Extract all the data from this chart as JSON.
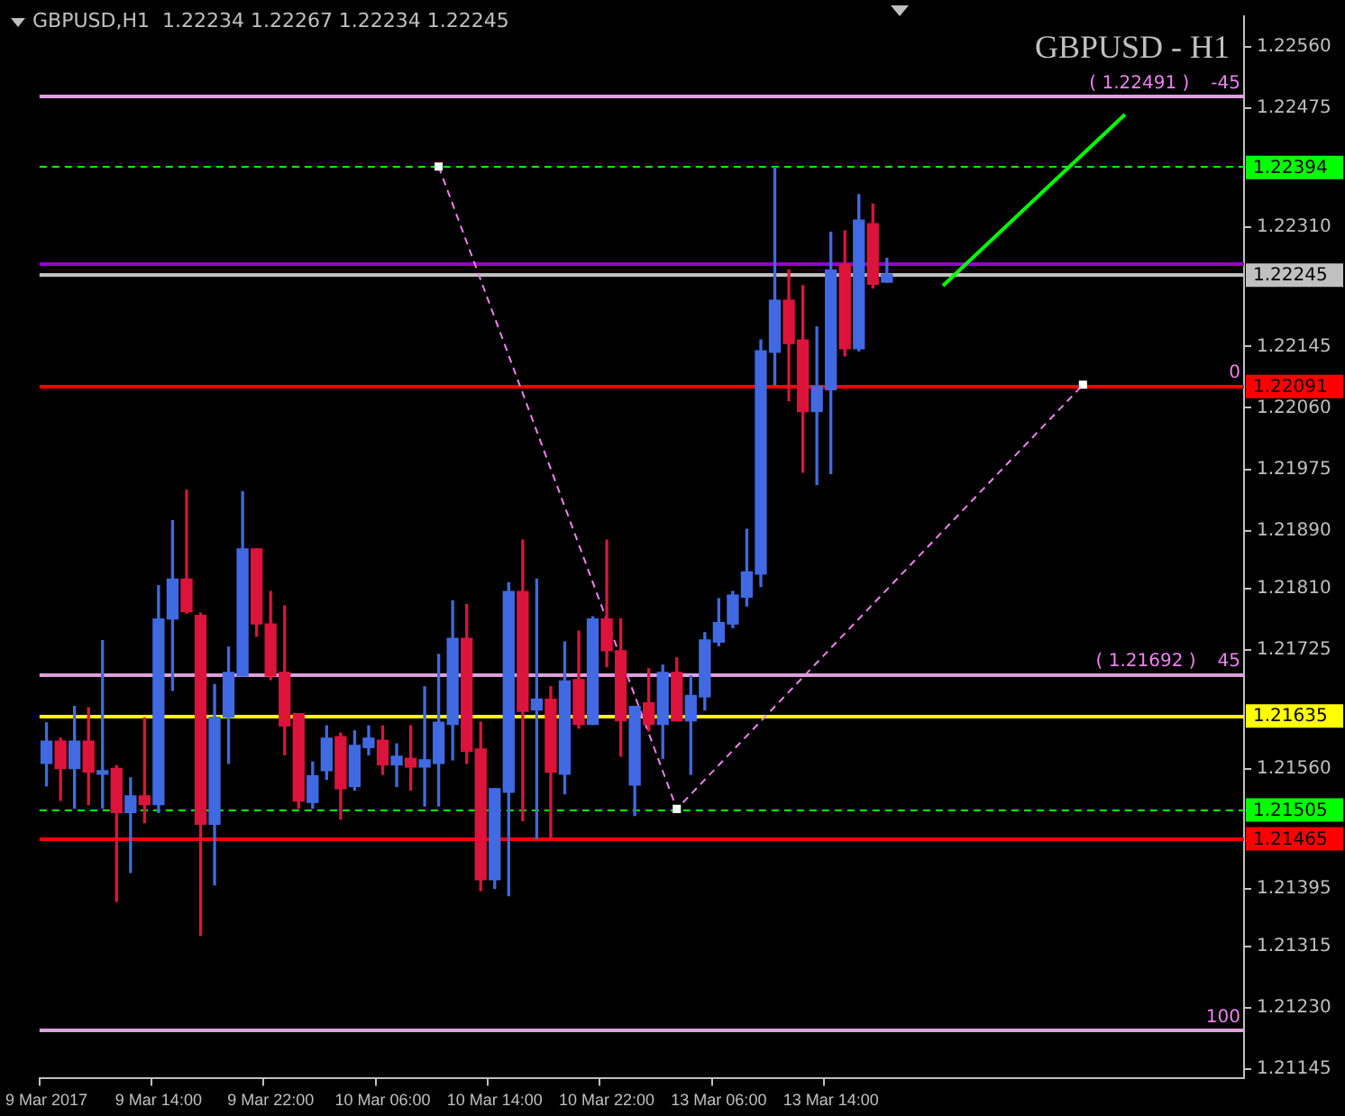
{
  "chart_data": {
    "type": "candlestick",
    "title": "GBPUSD - H1",
    "subtitle": "GBPUSD,H1  1.22234 1.22267 1.22234 1.22245",
    "categories": [
      "9 Mar 2017",
      null,
      null,
      null,
      null,
      null,
      null,
      null,
      "9 Mar 14:00",
      null,
      null,
      null,
      null,
      null,
      null,
      null,
      "9 Mar 22:00",
      null,
      null,
      null,
      null,
      null,
      null,
      null,
      "10 Mar 06:00",
      null,
      null,
      null,
      null,
      null,
      null,
      null,
      "10 Mar 14:00",
      null,
      null,
      null,
      null,
      null,
      null,
      null,
      "10 Mar 22:00",
      null,
      null,
      null,
      null,
      null,
      null,
      null,
      "13 Mar 06:00",
      null,
      null,
      null,
      null,
      null,
      null,
      null,
      "13 Mar 14:00",
      null,
      null,
      null,
      null,
      null,
      null,
      null,
      null,
      null,
      null,
      null,
      null,
      null,
      null,
      null,
      null,
      null,
      null,
      null,
      null,
      null,
      null,
      null,
      null,
      null,
      null,
      null,
      null,
      null
    ],
    "ohlc": [
      [
        1.21568,
        1.21624,
        1.21537,
        1.21599
      ],
      [
        1.21599,
        1.21603,
        1.21517,
        1.21561
      ],
      [
        1.21561,
        1.21647,
        1.21506,
        1.21599
      ],
      [
        1.21599,
        1.21645,
        1.21511,
        1.21556
      ],
      [
        1.21553,
        1.21738,
        1.21506,
        1.21558
      ],
      [
        1.21561,
        1.21565,
        1.21377,
        1.215
      ],
      [
        1.215,
        1.21548,
        1.21417,
        1.21523
      ],
      [
        1.21523,
        1.21631,
        1.21486,
        1.21511
      ],
      [
        1.21511,
        1.21814,
        1.215,
        1.21768
      ],
      [
        1.21768,
        1.21904,
        1.21669,
        1.21823
      ],
      [
        1.21823,
        1.21946,
        1.21776,
        1.21778
      ],
      [
        1.21773,
        1.21776,
        1.2133,
        1.21484
      ],
      [
        1.21484,
        1.21677,
        1.214,
        1.21632
      ],
      [
        1.21632,
        1.21729,
        1.21568,
        1.21694
      ],
      [
        1.21689,
        1.21944,
        1.21689,
        1.21865
      ],
      [
        1.21865,
        1.21865,
        1.21744,
        1.21761
      ],
      [
        1.21761,
        1.21806,
        1.21684,
        1.21689
      ],
      [
        1.21694,
        1.21786,
        1.2158,
        1.2162
      ],
      [
        1.21637,
        1.21637,
        1.21506,
        1.21516
      ],
      [
        1.21514,
        1.2157,
        1.21506,
        1.21551
      ],
      [
        1.21558,
        1.2162,
        1.21546,
        1.21603
      ],
      [
        1.21605,
        1.2161,
        1.21491,
        1.21533
      ],
      [
        1.21536,
        1.21613,
        1.21531,
        1.21593
      ],
      [
        1.2159,
        1.2162,
        1.2158,
        1.21603
      ],
      [
        1.216,
        1.2162,
        1.21553,
        1.21566
      ],
      [
        1.21566,
        1.21595,
        1.21536,
        1.21578
      ],
      [
        1.21575,
        1.2162,
        1.21531,
        1.21563
      ],
      [
        1.21563,
        1.21674,
        1.21509,
        1.21573
      ],
      [
        1.21568,
        1.21719,
        1.21509,
        1.21625
      ],
      [
        1.21622,
        1.21793,
        1.21573,
        1.21741
      ],
      [
        1.21741,
        1.21788,
        1.21568,
        1.21585
      ],
      [
        1.21588,
        1.21625,
        1.21392,
        1.21407
      ],
      [
        1.21407,
        1.21533,
        1.21395,
        1.21533
      ],
      [
        1.21528,
        1.21818,
        1.21385,
        1.21806
      ],
      [
        1.21806,
        1.21877,
        1.21489,
        1.2164
      ],
      [
        1.21642,
        1.21823,
        1.21464,
        1.21657
      ],
      [
        1.21657,
        1.21674,
        1.21464,
        1.21556
      ],
      [
        1.21553,
        1.21736,
        1.21526,
        1.21682
      ],
      [
        1.21684,
        1.21751,
        1.21617,
        1.21622
      ],
      [
        1.21622,
        1.21771,
        1.21622,
        1.21768
      ],
      [
        1.21768,
        1.21877,
        1.21702,
        1.21724
      ],
      [
        1.21724,
        1.21768,
        1.21578,
        1.21627
      ],
      [
        1.21538,
        1.21647,
        1.21496,
        1.21647
      ],
      [
        1.21652,
        1.21699,
        1.21613,
        1.21622
      ],
      [
        1.21622,
        1.21704,
        1.21575,
        1.21694
      ],
      [
        1.21694,
        1.21714,
        1.21627,
        1.21627
      ],
      [
        1.21627,
        1.21689,
        1.21553,
        1.21662
      ],
      [
        1.2166,
        1.21749,
        1.21642,
        1.21739
      ],
      [
        1.21736,
        1.21796,
        1.21731,
        1.21763
      ],
      [
        1.21761,
        1.21806,
        1.21756,
        1.21801
      ],
      [
        1.21798,
        1.21892,
        1.21786,
        1.21833
      ],
      [
        1.2183,
        1.22154,
        1.21813,
        1.22139
      ],
      [
        1.22137,
        1.22393,
        1.22092,
        1.22209
      ],
      [
        1.22209,
        1.22251,
        1.2207,
        1.22149
      ],
      [
        1.22154,
        1.22229,
        1.21971,
        1.22055
      ],
      [
        1.22055,
        1.22172,
        1.21954,
        1.2209
      ],
      [
        1.22085,
        1.22303,
        1.21969,
        1.22251
      ],
      [
        1.22258,
        1.22305,
        1.22132,
        1.22142
      ],
      [
        1.22142,
        1.22355,
        1.22139,
        1.2232
      ],
      [
        1.22315,
        1.22342,
        1.22226,
        1.22231
      ],
      [
        1.22234,
        1.22267,
        1.22234,
        1.22245
      ],
      null,
      null,
      null,
      null,
      null,
      null,
      null,
      null,
      null,
      null,
      null,
      null,
      null,
      null,
      null,
      null,
      null,
      null,
      null,
      null,
      null,
      null,
      null,
      null,
      null
    ],
    "colors": [
      "#4169e1",
      "#dc143c",
      "#4169e1",
      "#dc143c",
      "#4169e1",
      "#dc143c",
      "#4169e1",
      "#dc143c",
      "#4169e1",
      "#4169e1",
      "#dc143c",
      "#dc143c",
      "#4169e1",
      "#4169e1",
      "#4169e1",
      "#dc143c",
      "#dc143c",
      "#dc143c",
      "#dc143c",
      "#4169e1",
      "#4169e1",
      "#dc143c",
      "#4169e1",
      "#4169e1",
      "#dc143c",
      "#4169e1",
      "#dc143c",
      "#4169e1",
      "#4169e1",
      "#4169e1",
      "#dc143c",
      "#dc143c",
      "#4169e1",
      "#4169e1",
      "#dc143c",
      "#4169e1",
      "#dc143c",
      "#4169e1",
      "#dc143c",
      "#4169e1",
      "#dc143c",
      "#dc143c",
      "#4169e1",
      "#dc143c",
      "#4169e1",
      "#dc143c",
      "#4169e1",
      "#4169e1",
      "#4169e1",
      "#4169e1",
      "#4169e1",
      "#4169e1",
      "#4169e1",
      "#dc143c",
      "#dc143c",
      "#4169e1",
      "#4169e1",
      "#dc143c",
      "#4169e1",
      "#dc143c",
      "#4169e1",
      null,
      null,
      null,
      null,
      null,
      null,
      null,
      null,
      null,
      null,
      null,
      null,
      null,
      null,
      null,
      null,
      null,
      null,
      null,
      null,
      null,
      null,
      null,
      null,
      null
    ],
    "series": [
      {
        "type": "line",
        "color": "#ee82ee",
        "line_style": "dashed",
        "marker": "square",
        "values": [
          null,
          null,
          null,
          null,
          null,
          null,
          null,
          null,
          null,
          null,
          null,
          null,
          null,
          null,
          null,
          null,
          null,
          null,
          null,
          null,
          null,
          null,
          null,
          null,
          null,
          null,
          null,
          null,
          1.22394,
          null,
          null,
          null,
          null,
          null,
          null,
          null,
          null,
          null,
          null,
          null,
          null,
          null,
          null,
          null,
          null,
          1.21505,
          null,
          null,
          null,
          null,
          null,
          null,
          null,
          null,
          null,
          null,
          null,
          null,
          null,
          null,
          null,
          null,
          null,
          null,
          null,
          null,
          null,
          null,
          null,
          null,
          null,
          null,
          null,
          null,
          1.22092,
          null,
          null,
          null,
          null,
          null,
          null,
          null,
          null,
          null,
          null,
          null
        ]
      },
      {
        "type": "line",
        "color": "#00ff00",
        "values": [
          null,
          null,
          null,
          null,
          null,
          null,
          null,
          null,
          null,
          null,
          null,
          null,
          null,
          null,
          null,
          null,
          null,
          null,
          null,
          null,
          null,
          null,
          null,
          null,
          null,
          null,
          null,
          null,
          null,
          null,
          null,
          null,
          null,
          null,
          null,
          null,
          null,
          null,
          null,
          null,
          null,
          null,
          null,
          null,
          null,
          null,
          null,
          null,
          null,
          null,
          null,
          null,
          null,
          null,
          null,
          null,
          null,
          null,
          null,
          null,
          null,
          null,
          null,
          null,
          1.22229,
          null,
          null,
          null,
          null,
          null,
          null,
          null,
          null,
          null,
          null,
          null,
          null,
          1.22466,
          null,
          null,
          null,
          null,
          null,
          null,
          null,
          null
        ]
      }
    ],
    "ylim": [
      1.21132,
      1.22602
    ],
    "yticks": [
      {
        "value": 1.2256,
        "label": "1.22560"
      },
      {
        "value": 1.22475,
        "label": "1.22475"
      },
      {
        "value": 1.2231,
        "label": "1.22310"
      },
      {
        "value": 1.22145,
        "label": "1.22145"
      },
      {
        "value": 1.2206,
        "label": "1.22060"
      },
      {
        "value": 1.21975,
        "label": "1.21975"
      },
      {
        "value": 1.2189,
        "label": "1.21890"
      },
      {
        "value": 1.2181,
        "label": "1.21810"
      },
      {
        "value": 1.21725,
        "label": "1.21725"
      },
      {
        "value": 1.2156,
        "label": "1.21560"
      },
      {
        "value": 1.21395,
        "label": "1.21395"
      },
      {
        "value": 1.21315,
        "label": "1.21315"
      },
      {
        "value": 1.2123,
        "label": "1.21230"
      },
      {
        "value": 1.21145,
        "label": "1.21145"
      }
    ],
    "ref_lines": [
      {
        "axis": "y",
        "value": 1.22491,
        "color": "#dda0dd"
      },
      {
        "axis": "y",
        "value": 1.21692,
        "color": "#dda0dd"
      },
      {
        "axis": "y",
        "value": 1.21199,
        "color": "#dda0dd"
      },
      {
        "axis": "y",
        "value": 1.22259,
        "color": "#9400d3"
      },
      {
        "axis": "y",
        "value": 1.22245,
        "label": "1.22245",
        "color": "#c0c0c0"
      },
      {
        "axis": "y",
        "value": 1.22394,
        "label": "1.22394",
        "color": "#00ff00",
        "line_style": "dashed"
      },
      {
        "axis": "y",
        "value": 1.22091,
        "label": "1.22091",
        "color": "#ff0000"
      },
      {
        "axis": "y",
        "value": 1.21635,
        "label": "1.21635",
        "color": "#ffff00"
      },
      {
        "axis": "y",
        "value": 1.21505,
        "label": "1.21505",
        "color": "#00ff00",
        "line_style": "dashed"
      },
      {
        "axis": "y",
        "value": 1.21465,
        "label": "1.21465",
        "color": "#ff0000"
      }
    ],
    "annotations": [
      {
        "text": "-45",
        "y": 1.22491
      },
      {
        "text": "( 1.22491 )",
        "y": 1.22491
      },
      {
        "text": "0",
        "y": 1.22091
      },
      {
        "text": "45",
        "y": 1.21692
      },
      {
        "text": "( 1.21692 )",
        "y": 1.21692
      },
      {
        "text": "100",
        "y": 1.21199
      }
    ]
  }
}
